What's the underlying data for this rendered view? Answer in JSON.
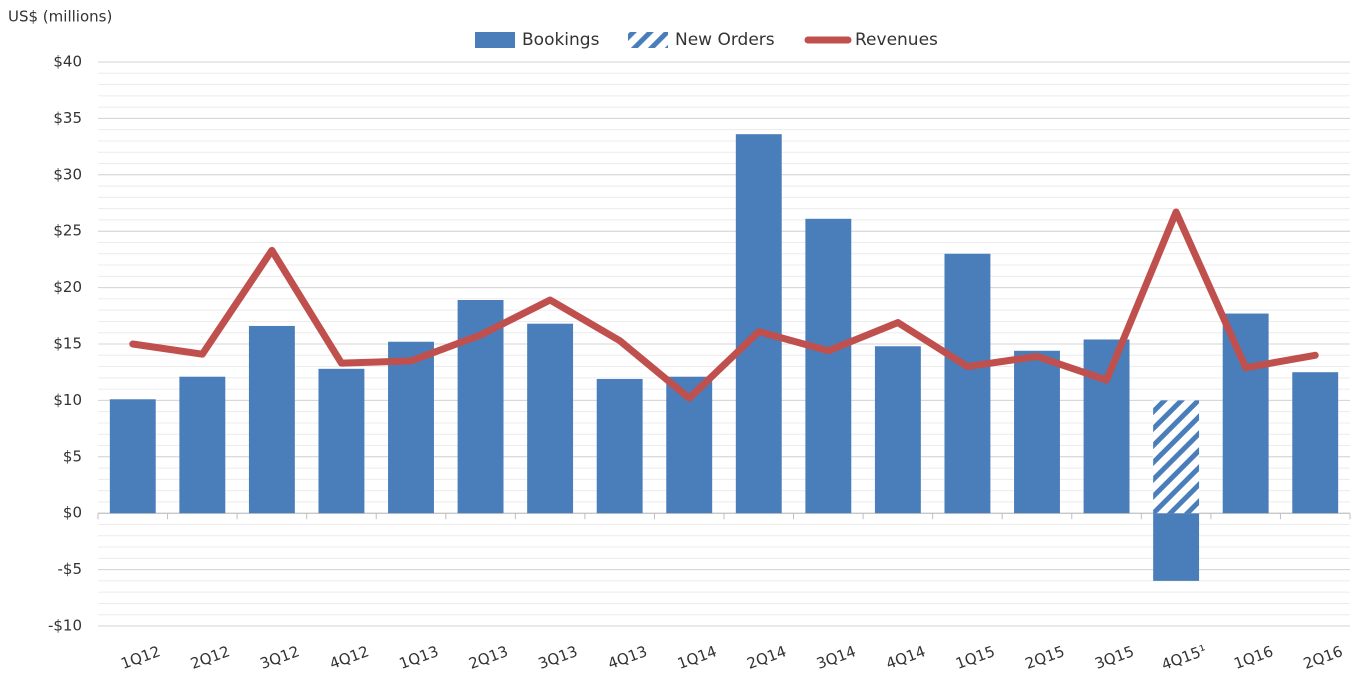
{
  "chart_data": {
    "type": "bar",
    "y_axis_label": "US$ (millions)",
    "categories": [
      "1Q12",
      "2Q12",
      "3Q12",
      "4Q12",
      "1Q13",
      "2Q13",
      "3Q13",
      "4Q13",
      "1Q14",
      "2Q14",
      "3Q14",
      "4Q14",
      "1Q15",
      "2Q15",
      "3Q15",
      "4Q15¹",
      "1Q16",
      "2Q16"
    ],
    "series": [
      {
        "name": "Bookings",
        "mark": "bar",
        "color": "#4a7ebb",
        "values": [
          10.1,
          12.1,
          16.6,
          12.8,
          15.2,
          18.9,
          16.8,
          11.9,
          12.1,
          33.6,
          26.1,
          14.8,
          23.0,
          14.4,
          15.4,
          -6.0,
          17.7,
          12.5
        ]
      },
      {
        "name": "New Orders",
        "mark": "bar",
        "pattern": "hatch",
        "color": "#4a7ebb",
        "values": [
          null,
          null,
          null,
          null,
          null,
          null,
          null,
          null,
          null,
          null,
          null,
          null,
          null,
          null,
          null,
          10.0,
          null,
          null
        ]
      },
      {
        "name": "Revenues",
        "mark": "line",
        "color": "#c0504d",
        "values": [
          15.0,
          14.1,
          23.3,
          13.3,
          13.5,
          15.8,
          18.9,
          15.3,
          10.2,
          16.1,
          14.4,
          16.9,
          13.0,
          13.9,
          11.8,
          26.7,
          12.9,
          14.0
        ]
      }
    ],
    "ylim": [
      -10,
      40
    ],
    "yticks": [
      {
        "value": -10,
        "label": "-$10"
      },
      {
        "value": -5,
        "label": "-$5"
      },
      {
        "value": 0,
        "label": "$0"
      },
      {
        "value": 5,
        "label": "$5"
      },
      {
        "value": 10,
        "label": "$10"
      },
      {
        "value": 15,
        "label": "$15"
      },
      {
        "value": 20,
        "label": "$20"
      },
      {
        "value": 25,
        "label": "$25"
      },
      {
        "value": 30,
        "label": "$30"
      },
      {
        "value": 35,
        "label": "$35"
      },
      {
        "value": 40,
        "label": "$40"
      }
    ],
    "grid": true,
    "minor_grid_step": 1,
    "legend": "top"
  }
}
